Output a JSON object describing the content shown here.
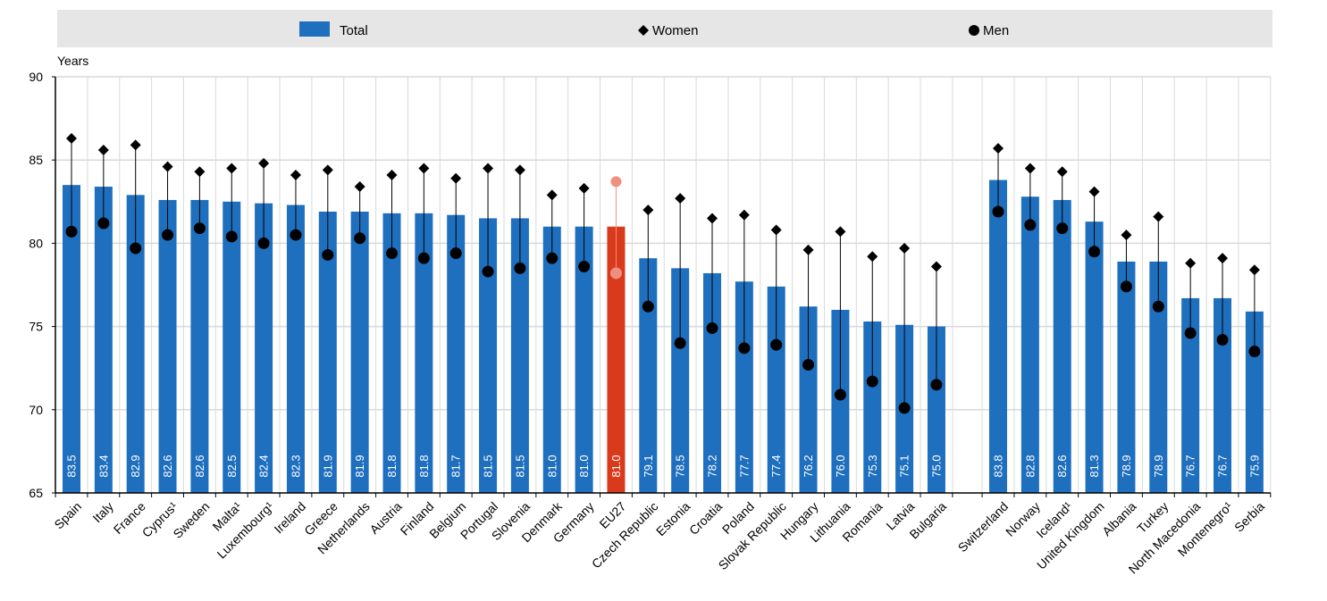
{
  "chart_data": {
    "type": "bar",
    "ylabel": "Years",
    "ylim": [
      65,
      90
    ],
    "yticks": [
      "65",
      "70",
      "75",
      "80",
      "85",
      "90"
    ],
    "grid": true,
    "legend_position": "top",
    "colors": {
      "total": "#1f6fbf",
      "highlight": "#d93a1b",
      "highlight_marker": "#ef8f7f",
      "marker": "#000000",
      "legend_bg": "#e6e6e6",
      "grid": "#d9d9d9"
    },
    "series": [
      {
        "name": "Total",
        "kind": "bar"
      },
      {
        "name": "Women",
        "kind": "diamond"
      },
      {
        "name": "Men",
        "kind": "circle"
      }
    ],
    "highlight_category": "EU27",
    "gap_after_index": 26,
    "categories": [
      "Spain",
      "Italy",
      "France",
      "Cyprus¹",
      "Sweden",
      "Malta¹",
      "Luxembourg¹",
      "Ireland",
      "Greece",
      "Netherlands",
      "Austria",
      "Finland",
      "Belgium",
      "Portugal",
      "Slovenia",
      "Denmark",
      "Germany",
      "EU27",
      "Czech Republic",
      "Estonia",
      "Croatia",
      "Poland",
      "Slovak Republic",
      "Hungary",
      "Lithuania",
      "Romania",
      "Latvia",
      "Bulgaria",
      "Switzerland",
      "Norway",
      "Iceland¹",
      "United Kingdom",
      "Albania",
      "Turkey",
      "North Macedonia",
      "Montenegro¹",
      "Serbia"
    ],
    "total": [
      83.5,
      83.4,
      82.9,
      82.6,
      82.6,
      82.5,
      82.4,
      82.3,
      81.9,
      81.9,
      81.8,
      81.8,
      81.7,
      81.5,
      81.5,
      81.0,
      81.0,
      81.0,
      79.1,
      78.5,
      78.2,
      77.7,
      77.4,
      76.2,
      76.0,
      75.3,
      75.1,
      75.0,
      83.8,
      82.8,
      82.6,
      81.3,
      78.9,
      78.9,
      76.7,
      76.7,
      75.9
    ],
    "total_labels": [
      "83.5",
      "83.4",
      "82.9",
      "82.6",
      "82.6",
      "82.5",
      "82.4",
      "82.3",
      "81.9",
      "81.9",
      "81.8",
      "81.8",
      "81.7",
      "81.5",
      "81.5",
      "81.0",
      "81.0",
      "81.0",
      "79.1",
      "78.5",
      "78.2",
      "77.7",
      "77.4",
      "76.2",
      "76.0",
      "75.3",
      "75.1",
      "75.0",
      "83.8",
      "82.8",
      "82.6",
      "81.3",
      "78.9",
      "78.9",
      "76.7",
      "76.7",
      "75.9"
    ],
    "women": [
      86.3,
      85.6,
      85.9,
      84.6,
      84.3,
      84.5,
      84.8,
      84.1,
      84.4,
      83.4,
      84.1,
      84.5,
      83.9,
      84.5,
      84.4,
      82.9,
      83.3,
      83.7,
      82.0,
      82.7,
      81.5,
      81.7,
      80.8,
      79.6,
      80.7,
      79.2,
      79.7,
      78.6,
      85.7,
      84.5,
      84.3,
      83.1,
      80.5,
      81.6,
      78.8,
      79.1,
      78.4
    ],
    "men": [
      80.7,
      81.2,
      79.7,
      80.5,
      80.9,
      80.4,
      80.0,
      80.5,
      79.3,
      80.3,
      79.4,
      79.1,
      79.4,
      78.3,
      78.5,
      79.1,
      78.6,
      78.2,
      76.2,
      74.0,
      74.9,
      73.7,
      73.9,
      72.7,
      70.9,
      71.7,
      70.1,
      71.5,
      81.9,
      81.1,
      80.9,
      79.5,
      77.4,
      76.2,
      74.6,
      74.2,
      73.5
    ]
  }
}
